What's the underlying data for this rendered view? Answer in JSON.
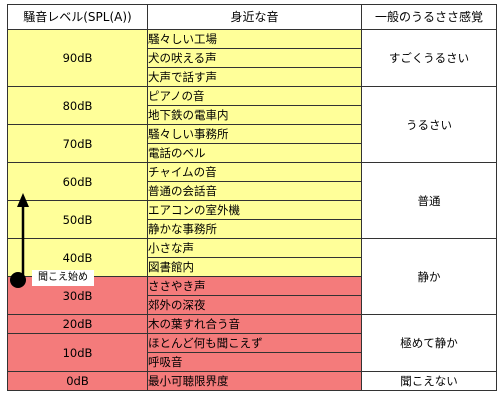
{
  "headers": {
    "level": "騒音レベル(SPL(A))",
    "sound": "身近な音",
    "feeling": "一般のうるささ感覚"
  },
  "levels": [
    "90dB",
    "80dB",
    "70dB",
    "60dB",
    "50dB",
    "40dB",
    "30dB",
    "20dB",
    "10dB",
    "0dB"
  ],
  "sounds": [
    "騒々しい工場",
    "犬の吠える声",
    "大声で話す声",
    "ピアノの音",
    "地下鉄の電車内",
    "騒々しい事務所",
    "電話のベル",
    "チャイムの音",
    "普通の会話音",
    "エアコンの室外機",
    "静かな事務所",
    "小さな声",
    "図書館内",
    "ささやき声",
    "郊外の深夜",
    "木の葉すれ合う音",
    "ほとんど何も聞こえず",
    "呼吸音",
    "最小可聴限界度"
  ],
  "feelings": [
    "すごくうるさい",
    "うるさい",
    "普通",
    "静か",
    "極めて静か",
    "聞こえない"
  ],
  "marker": {
    "label": "聞こえ始め"
  },
  "colors": {
    "loud": "#ffff99",
    "quiet": "#f47b7b",
    "border": "#333333"
  }
}
